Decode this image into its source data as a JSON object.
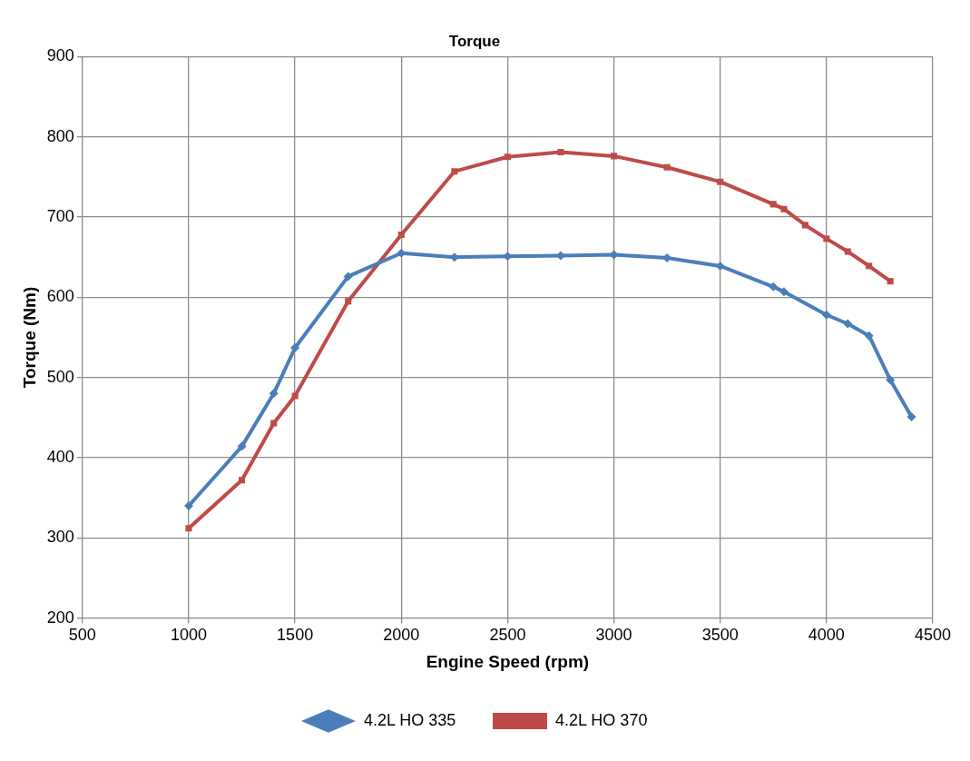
{
  "chart_data": {
    "type": "line",
    "title": "Torque",
    "xlabel": "Engine Speed (rpm)",
    "ylabel": "Torque (Nm)",
    "xlim": [
      500,
      4500
    ],
    "xticks": [
      500,
      1000,
      1500,
      2000,
      2500,
      3000,
      3500,
      4000,
      4500
    ],
    "ylim": [
      200,
      900
    ],
    "yticks": [
      200,
      300,
      400,
      500,
      600,
      700,
      800,
      900
    ],
    "grid": true,
    "legend": "bottom",
    "line_style": "solid",
    "series": [
      {
        "name": "4.2L HO 335",
        "color": "#4a7ebb",
        "marker": "diamond",
        "x": [
          1000,
          1250,
          1400,
          1500,
          1750,
          2000,
          2250,
          2500,
          2750,
          3000,
          3250,
          3500,
          3750,
          3800,
          4000,
          4100,
          4200,
          4300,
          4400
        ],
        "values": [
          340,
          414,
          480,
          537,
          626,
          655,
          650,
          651,
          652,
          653,
          649,
          639,
          613,
          607,
          578,
          567,
          552,
          497,
          451
        ]
      },
      {
        "name": "4.2L HO 370",
        "color": "#be4b48",
        "marker": "square",
        "x": [
          1000,
          1250,
          1400,
          1500,
          1750,
          2000,
          2250,
          2500,
          2750,
          3000,
          3250,
          3500,
          3750,
          3800,
          3900,
          4000,
          4100,
          4200,
          4300
        ],
        "values": [
          312,
          372,
          443,
          477,
          595,
          678,
          757,
          775,
          781,
          776,
          762,
          744,
          716,
          710,
          690,
          673,
          657,
          639,
          620
        ]
      }
    ]
  }
}
